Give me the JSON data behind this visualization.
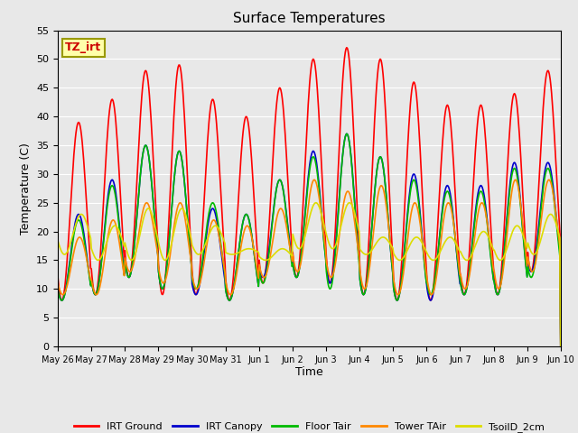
{
  "title": "Surface Temperatures",
  "xlabel": "Time",
  "ylabel": "Temperature (C)",
  "ylim": [
    0,
    55
  ],
  "yticks": [
    0,
    5,
    10,
    15,
    20,
    25,
    30,
    35,
    40,
    45,
    50,
    55
  ],
  "background_color": "#e8e8e8",
  "grid_color": "#ffffff",
  "series": {
    "IRT Ground": {
      "color": "#ff0000",
      "linewidth": 1.2
    },
    "IRT Canopy": {
      "color": "#0000cc",
      "linewidth": 1.2
    },
    "Floor Tair": {
      "color": "#00bb00",
      "linewidth": 1.2
    },
    "Tower TAir": {
      "color": "#ff8800",
      "linewidth": 1.2
    },
    "TsoilD_2cm": {
      "color": "#dddd00",
      "linewidth": 1.2
    }
  },
  "tick_labels": [
    "May 26",
    "May 27",
    "May 28",
    "May 29",
    "May 30",
    "May 31",
    "Jun 1",
    "Jun 2",
    "Jun 3",
    "Jun 4",
    "Jun 5",
    "Jun 6",
    "Jun 7",
    "Jun 8",
    "Jun 9",
    "Jun 10"
  ],
  "annotation_text": "TZ_irt",
  "annotation_color": "#cc0000",
  "annotation_bg": "#ffffaa",
  "annotation_border": "#999900",
  "irt_ground_peaks": [
    39,
    43,
    48,
    49,
    43,
    40,
    45,
    50,
    52,
    50,
    46,
    42,
    42,
    44,
    48
  ],
  "irt_ground_troughs": [
    8,
    9,
    12,
    9,
    9,
    8,
    11,
    12,
    11,
    9,
    8,
    8,
    9,
    9,
    13
  ],
  "irt_canopy_peaks": [
    23,
    29,
    35,
    34,
    24,
    23,
    29,
    34,
    37,
    33,
    30,
    28,
    28,
    32,
    32
  ],
  "irt_canopy_troughs": [
    8,
    9,
    12,
    10,
    9,
    8,
    12,
    12,
    11,
    9,
    8,
    8,
    9,
    9,
    13
  ],
  "floor_peaks": [
    22,
    28,
    35,
    34,
    25,
    23,
    29,
    33,
    37,
    33,
    29,
    27,
    27,
    31,
    31
  ],
  "floor_troughs": [
    8,
    9,
    12,
    10,
    10,
    8,
    11,
    12,
    10,
    9,
    8,
    9,
    9,
    9,
    12
  ],
  "tower_peaks": [
    19,
    22,
    25,
    25,
    22,
    21,
    24,
    29,
    27,
    28,
    25,
    25,
    25,
    29,
    29
  ],
  "tower_troughs": [
    9,
    9,
    13,
    11,
    10,
    9,
    12,
    13,
    12,
    10,
    9,
    9,
    10,
    10,
    13
  ],
  "soil_peaks": [
    23,
    21,
    24,
    24,
    21,
    17,
    17,
    25,
    25,
    19,
    19,
    19,
    20,
    21,
    23
  ],
  "soil_troughs": [
    16,
    15,
    15,
    15,
    16,
    16,
    15,
    17,
    17,
    16,
    15,
    15,
    15,
    15,
    16
  ],
  "peak_phase": 0.37,
  "soil_phase": 0.45,
  "tower_phase": 0.4
}
